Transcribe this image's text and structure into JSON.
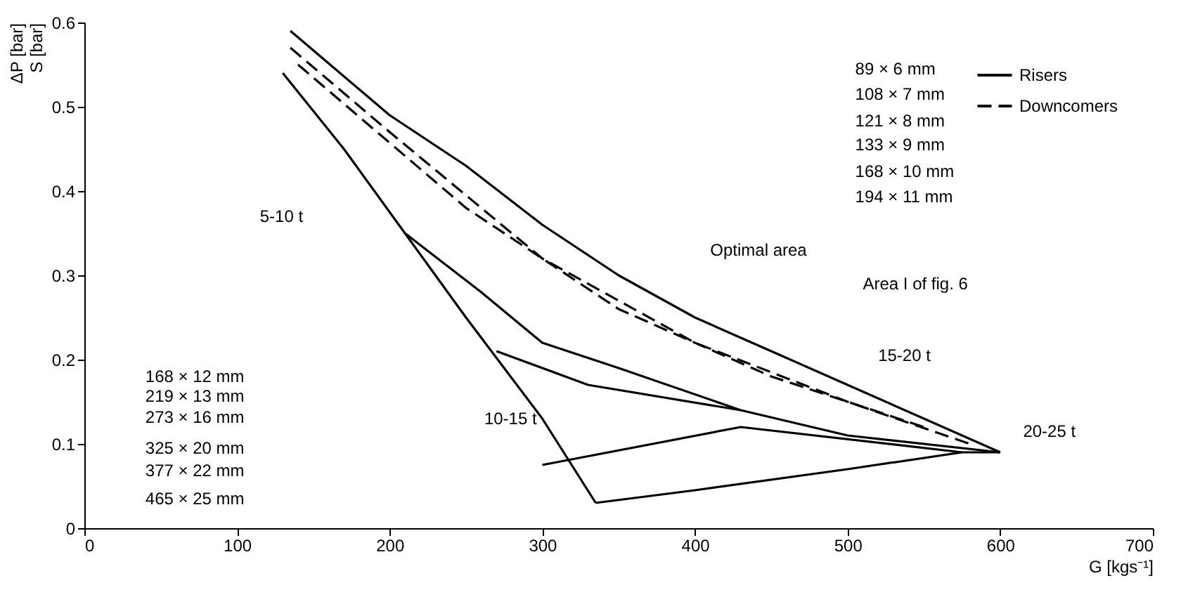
{
  "chart_data": {
    "type": "line",
    "xlabel": "G [kgs⁻¹]",
    "ylabel": "ΔP [bar]\nS [bar]",
    "xlim": [
      0,
      700
    ],
    "xticks": [
      0,
      100,
      200,
      300,
      400,
      500,
      600,
      700
    ],
    "ylim": [
      0,
      0.6
    ],
    "yticks": [
      0,
      0.1,
      0.2,
      0.3,
      0.4,
      0.5,
      0.6
    ],
    "grid": false,
    "legend": "top right",
    "marker": "none",
    "series": [
      {
        "name": "Risers",
        "color": "#000000",
        "line_style": "solid",
        "x": [
          135,
          200,
          250,
          300,
          350,
          400,
          450,
          500,
          550,
          600
        ],
        "values": [
          0.59,
          0.49,
          0.43,
          0.36,
          0.3,
          0.25,
          0.21,
          0.17,
          0.13,
          0.09
        ]
      },
      {
        "name": "Downcomers",
        "color": "#000000",
        "line_style": "dashed",
        "x": [
          135,
          200,
          300,
          400,
          500,
          580
        ],
        "values": [
          0.57,
          0.47,
          0.32,
          0.22,
          0.15,
          0.1
        ]
      },
      {
        "color": "#000000",
        "line_style": "dashed",
        "x": [
          140,
          250,
          350,
          450,
          550
        ],
        "values": [
          0.55,
          0.38,
          0.26,
          0.18,
          0.12
        ]
      },
      {
        "color": "#000000",
        "line_style": "solid",
        "x": [
          130,
          170,
          210,
          250,
          300,
          335
        ],
        "values": [
          0.54,
          0.45,
          0.35,
          0.25,
          0.13,
          0.03
        ]
      },
      {
        "color": "#000000",
        "line_style": "solid",
        "x": [
          335,
          400,
          500,
          575,
          600
        ],
        "values": [
          0.03,
          0.045,
          0.07,
          0.09,
          0.09
        ]
      },
      {
        "color": "#000000",
        "line_style": "solid",
        "x": [
          210,
          260,
          300,
          350,
          430,
          500,
          600
        ],
        "values": [
          0.35,
          0.28,
          0.22,
          0.19,
          0.14,
          0.11,
          0.09
        ]
      },
      {
        "color": "#000000",
        "line_style": "solid",
        "x": [
          270,
          330,
          430
        ],
        "values": [
          0.21,
          0.17,
          0.14
        ]
      },
      {
        "color": "#000000",
        "line_style": "solid",
        "x": [
          300,
          430,
          575
        ],
        "values": [
          0.075,
          0.12,
          0.09
        ]
      }
    ],
    "annotations": [
      "89 × 6 mm",
      "108 × 7 mm",
      "121 × 8 mm",
      "133 × 9 mm",
      "168 × 10 mm",
      "194 × 11 mm",
      "5-10 t",
      "Optimal area",
      "Area I of fig. 6",
      "168 × 12 mm",
      "219 × 13 mm",
      "273 × 16 mm",
      "325 × 20 mm",
      "377 × 22 mm",
      "465 × 25 mm",
      "10-15 t",
      "15-20 t",
      "20-25 t"
    ]
  }
}
